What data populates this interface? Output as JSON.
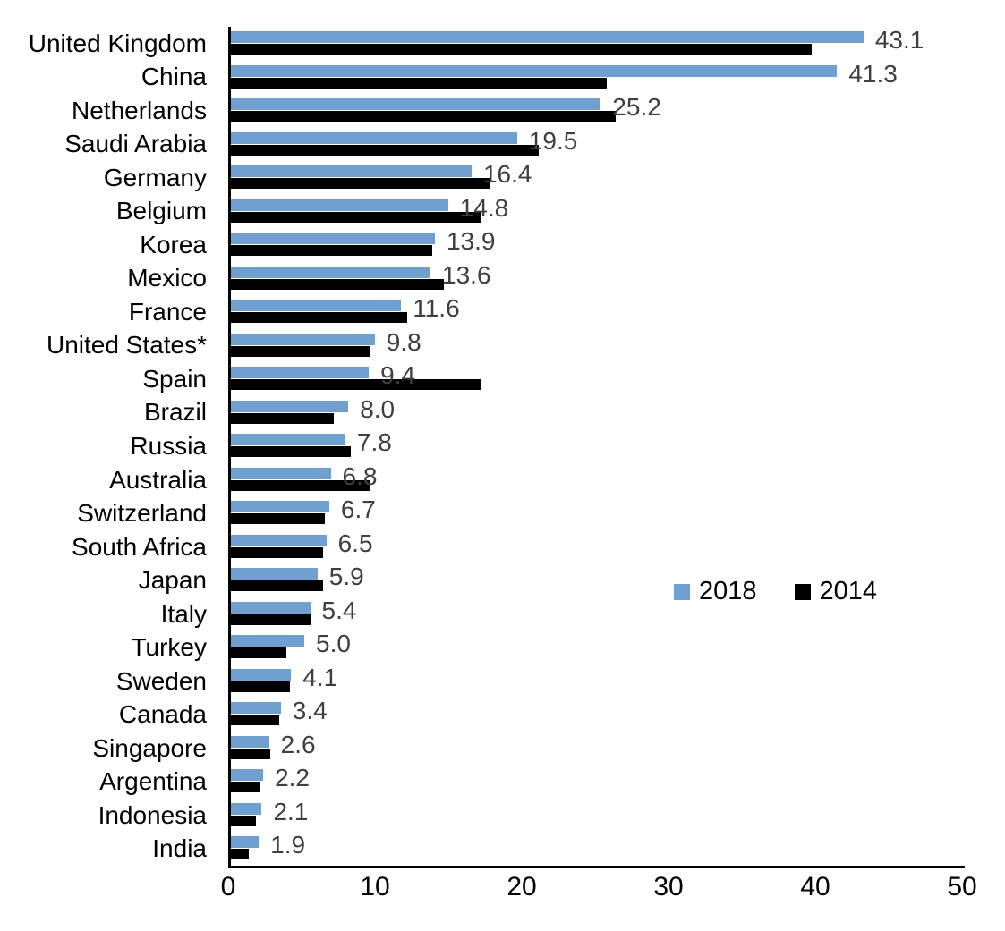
{
  "chart_data": {
    "type": "bar",
    "orientation": "horizontal",
    "title": "",
    "xlabel": "",
    "ylabel": "",
    "xlim": [
      0,
      50
    ],
    "x_ticks": [
      0,
      10,
      20,
      30,
      40,
      50
    ],
    "grid": false,
    "legend_position": "inside-right",
    "categories": [
      "United Kingdom",
      "China",
      "Netherlands",
      "Saudi Arabia",
      "Germany",
      "Belgium",
      "Korea",
      "Mexico",
      "France",
      "United States*",
      "Spain",
      "Brazil",
      "Russia",
      "Australia",
      "Switzerland",
      "South Africa",
      "Japan",
      "Italy",
      "Turkey",
      "Sweden",
      "Canada",
      "Singapore",
      "Argentina",
      "Indonesia",
      "India"
    ],
    "series": [
      {
        "name": "2018",
        "color": "#6FA0D0",
        "values": [
          43.1,
          41.3,
          25.2,
          19.5,
          16.4,
          14.8,
          13.9,
          13.6,
          11.6,
          9.8,
          9.4,
          8.0,
          7.8,
          6.8,
          6.7,
          6.5,
          5.9,
          5.4,
          5.0,
          4.1,
          3.4,
          2.6,
          2.2,
          2.1,
          1.9
        ]
      },
      {
        "name": "2014",
        "color": "#000000",
        "values": [
          39.6,
          25.6,
          26.2,
          21.0,
          17.7,
          17.1,
          13.7,
          14.5,
          12.0,
          9.5,
          17.1,
          7.0,
          8.2,
          9.5,
          6.4,
          6.3,
          6.3,
          5.5,
          3.8,
          4.0,
          3.3,
          2.7,
          2.0,
          1.7,
          1.2
        ]
      }
    ],
    "data_labels": [
      "43.1",
      "41.3",
      "25.2",
      "19.5",
      "16.4",
      "14.8",
      "13.9",
      "13.6",
      "11.6",
      "9.8",
      "9.4",
      "8.0",
      "7.8",
      "6.8",
      "6.7",
      "6.5",
      "5.9",
      "5.4",
      "5.0",
      "4.1",
      "3.4",
      "2.6",
      "2.2",
      "2.1",
      "1.9"
    ],
    "data_label_color": "#3f3f3f",
    "axis_color": "#000000"
  }
}
